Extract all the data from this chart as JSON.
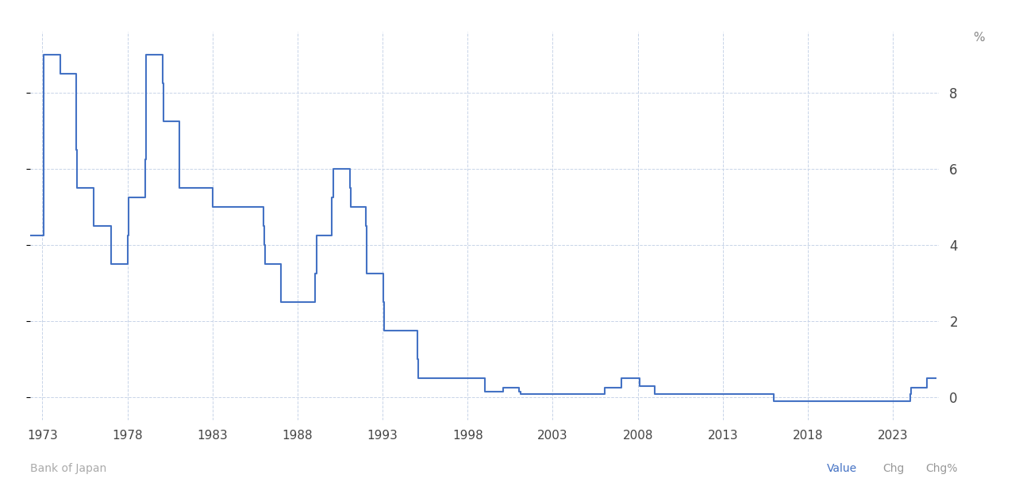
{
  "ylabel_right": "%",
  "source_label": "Bank of Japan",
  "legend_items": [
    "Value",
    "Chg",
    "Chg%"
  ],
  "legend_colors": [
    "#4472c4",
    "#999999",
    "#999999"
  ],
  "line_color": "#4472c4",
  "background_color": "#ffffff",
  "plot_bg_color": "#ffffff",
  "grid_color": "#c8d4e8",
  "xlim_start": 1972.3,
  "xlim_end": 2025.7,
  "ylim_bottom": -0.6,
  "ylim_top": 9.6,
  "yticks": [
    0,
    2,
    4,
    6,
    8
  ],
  "xticks": [
    1973,
    1978,
    1983,
    1988,
    1993,
    1998,
    2003,
    2008,
    2013,
    2018,
    2023
  ],
  "data": [
    [
      1972.08,
      4.25
    ],
    [
      1973.04,
      4.25
    ],
    [
      1973.08,
      9.0
    ],
    [
      1974.01,
      9.0
    ],
    [
      1974.04,
      8.5
    ],
    [
      1974.07,
      8.5
    ],
    [
      1975.01,
      6.5
    ],
    [
      1975.04,
      5.5
    ],
    [
      1975.09,
      5.5
    ],
    [
      1976.03,
      4.5
    ],
    [
      1976.09,
      4.5
    ],
    [
      1977.03,
      3.5
    ],
    [
      1977.09,
      3.5
    ],
    [
      1978.03,
      3.5
    ],
    [
      1978.04,
      4.25
    ],
    [
      1978.07,
      4.25
    ],
    [
      1978.09,
      5.25
    ],
    [
      1979.01,
      5.25
    ],
    [
      1979.04,
      6.25
    ],
    [
      1979.07,
      6.25
    ],
    [
      1979.11,
      9.0
    ],
    [
      1980.03,
      9.0
    ],
    [
      1980.06,
      8.25
    ],
    [
      1980.08,
      8.25
    ],
    [
      1980.11,
      7.25
    ],
    [
      1981.03,
      7.25
    ],
    [
      1981.06,
      5.5
    ],
    [
      1981.12,
      5.5
    ],
    [
      1983.01,
      5.0
    ],
    [
      1983.1,
      5.0
    ],
    [
      1984.01,
      5.0
    ],
    [
      1985.01,
      5.0
    ],
    [
      1986.01,
      5.0
    ],
    [
      1986.02,
      4.5
    ],
    [
      1986.04,
      4.0
    ],
    [
      1986.09,
      3.5
    ],
    [
      1987.02,
      2.5
    ],
    [
      1989.01,
      2.5
    ],
    [
      1989.05,
      3.25
    ],
    [
      1989.1,
      3.75
    ],
    [
      1989.12,
      4.25
    ],
    [
      1990.03,
      5.25
    ],
    [
      1990.08,
      6.0
    ],
    [
      1991.01,
      6.0
    ],
    [
      1991.07,
      5.5
    ],
    [
      1991.11,
      5.0
    ],
    [
      1992.01,
      4.5
    ],
    [
      1992.04,
      3.75
    ],
    [
      1992.07,
      3.25
    ],
    [
      1993.02,
      2.5
    ],
    [
      1993.09,
      1.75
    ],
    [
      1995.04,
      1.0
    ],
    [
      1995.09,
      0.5
    ],
    [
      1998.09,
      0.5
    ],
    [
      1999.02,
      0.15
    ],
    [
      2000.08,
      0.25
    ],
    [
      2001.03,
      0.15
    ],
    [
      2001.09,
      0.1
    ],
    [
      2006.07,
      0.1
    ],
    [
      2006.08,
      0.25
    ],
    [
      2007.03,
      0.5
    ],
    [
      2008.1,
      0.3
    ],
    [
      2009.01,
      0.1
    ],
    [
      2010.1,
      0.1
    ],
    [
      2013.04,
      0.1
    ],
    [
      2016.01,
      -0.1
    ],
    [
      2024.03,
      -0.1
    ],
    [
      2024.04,
      0.1
    ],
    [
      2024.08,
      0.25
    ],
    [
      2025.01,
      0.5
    ],
    [
      2025.5,
      0.5
    ]
  ]
}
